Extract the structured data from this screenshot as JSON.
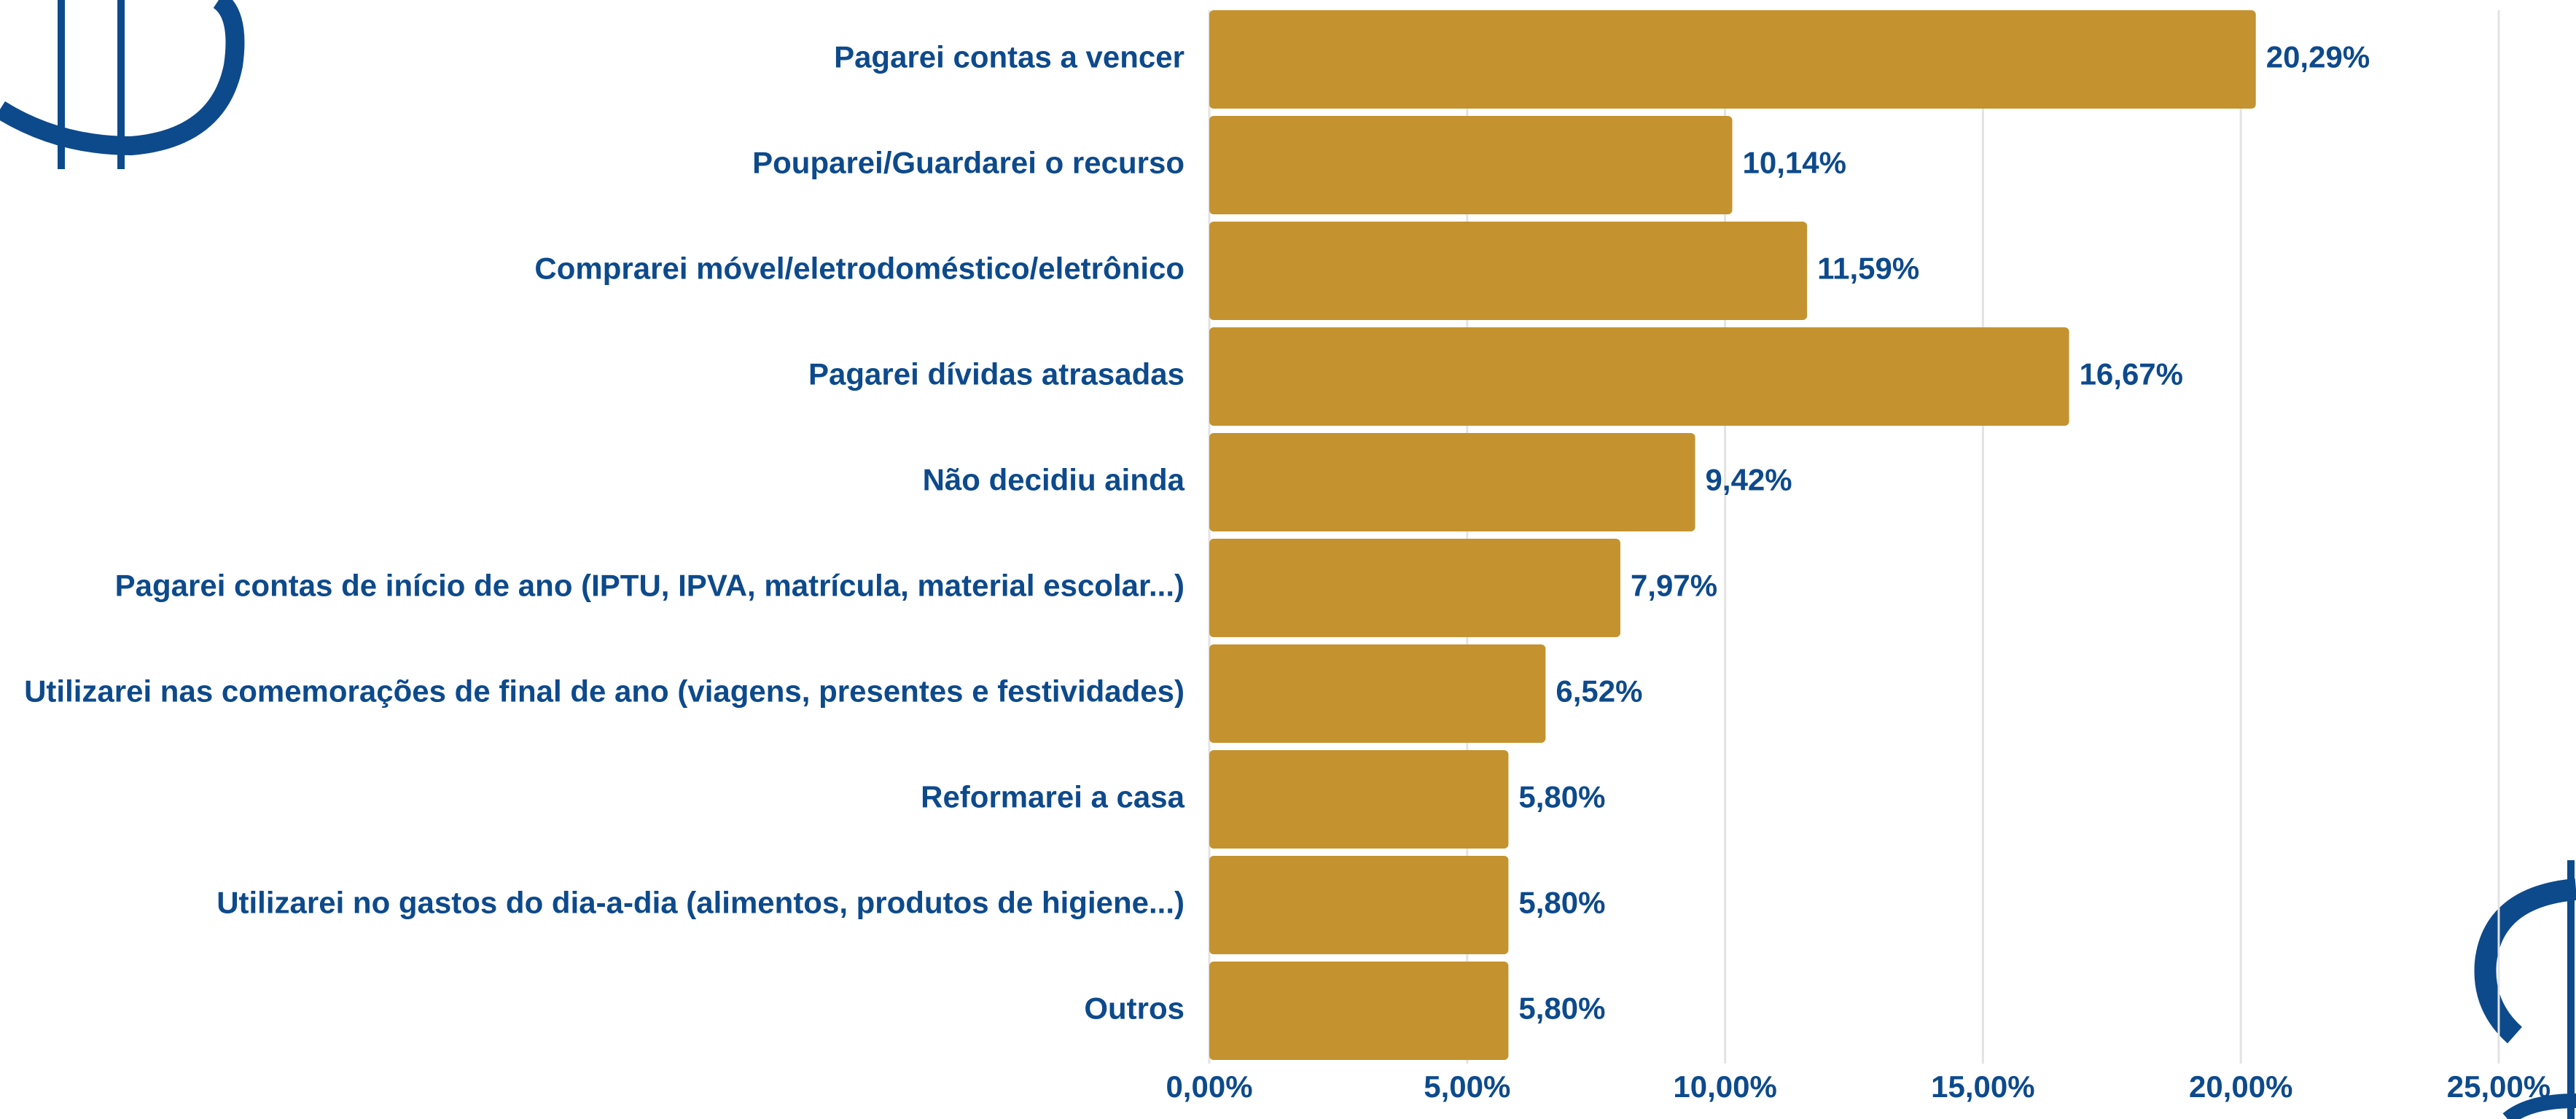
{
  "chart_data": {
    "type": "bar",
    "orientation": "horizontal",
    "categories": [
      "Pagarei contas a vencer",
      "Pouparei/Guardarei o recurso",
      "Comprarei móvel/eletrodoméstico/eletrônico",
      "Pagarei dívidas atrasadas",
      "Não decidiu ainda",
      "Pagarei contas de início de ano (IPTU, IPVA, matrícula, material escolar...)",
      "Utilizarei nas comemorações de final de ano (viagens, presentes e festividades)",
      "Reformarei a casa",
      "Utilizarei no gastos do dia-a-dia (alimentos, produtos de higiene...)",
      "Outros"
    ],
    "values": [
      20.29,
      10.14,
      11.59,
      16.67,
      9.42,
      7.97,
      6.52,
      5.8,
      5.8,
      5.8
    ],
    "value_labels": [
      "20,29%",
      "10,14%",
      "11,59%",
      "16,67%",
      "9,42%",
      "7,97%",
      "6,52%",
      "5,80%",
      "5,80%",
      "5,80%"
    ],
    "color": "#c4932f",
    "xlim": [
      0,
      25
    ],
    "xticks": [
      {
        "value": 0,
        "label": "0,00%"
      },
      {
        "value": 5,
        "label": "5,00%"
      },
      {
        "value": 10,
        "label": "10,00%"
      },
      {
        "value": 15,
        "label": "15,00%"
      },
      {
        "value": 20,
        "label": "20,00%"
      },
      {
        "value": 25,
        "label": "25,00%"
      }
    ],
    "grid": true
  }
}
